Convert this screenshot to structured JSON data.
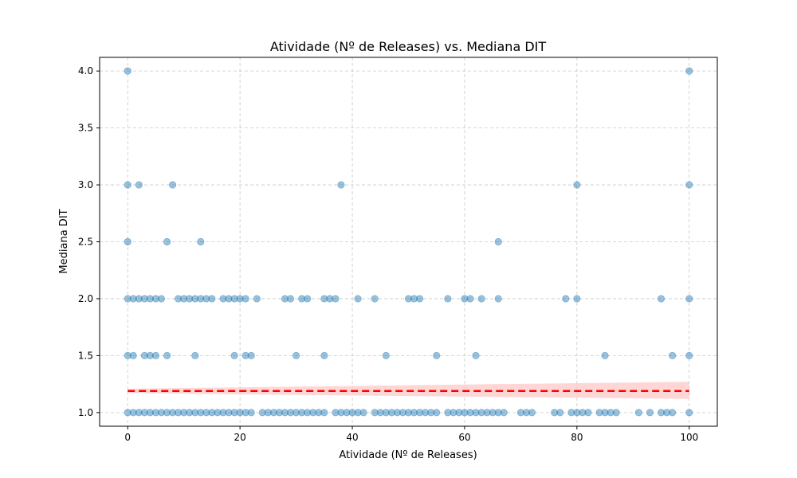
{
  "chart_data": {
    "type": "scatter",
    "title": "Atividade (Nº de Releases) vs. Mediana DIT",
    "xlabel": "Atividade (Nº de Releases)",
    "ylabel": "Mediana DIT",
    "xlim": [
      -5,
      105
    ],
    "ylim": [
      0.88,
      4.12
    ],
    "x_ticks": [
      0,
      20,
      40,
      60,
      80,
      100
    ],
    "y_ticks": [
      1.0,
      1.5,
      2.0,
      2.5,
      3.0,
      3.5,
      4.0
    ],
    "x_tick_labels": [
      "0",
      "20",
      "40",
      "60",
      "80",
      "100"
    ],
    "y_tick_labels": [
      "1.0",
      "1.5",
      "2.0",
      "2.5",
      "3.0",
      "3.5",
      "4.0"
    ],
    "grid": true,
    "series": [
      {
        "marker_color": "#1f77b4",
        "points": [
          [
            0,
            4.0
          ],
          [
            100,
            4.0
          ],
          [
            0,
            3.0
          ],
          [
            2,
            3.0
          ],
          [
            8,
            3.0
          ],
          [
            38,
            3.0
          ],
          [
            80,
            3.0
          ],
          [
            100,
            3.0
          ],
          [
            0,
            2.5
          ],
          [
            7,
            2.5
          ],
          [
            13,
            2.5
          ],
          [
            66,
            2.5
          ],
          [
            0,
            2.0
          ],
          [
            1,
            2.0
          ],
          [
            2,
            2.0
          ],
          [
            3,
            2.0
          ],
          [
            4,
            2.0
          ],
          [
            5,
            2.0
          ],
          [
            6,
            2.0
          ],
          [
            9,
            2.0
          ],
          [
            10,
            2.0
          ],
          [
            11,
            2.0
          ],
          [
            12,
            2.0
          ],
          [
            13,
            2.0
          ],
          [
            14,
            2.0
          ],
          [
            15,
            2.0
          ],
          [
            17,
            2.0
          ],
          [
            18,
            2.0
          ],
          [
            19,
            2.0
          ],
          [
            20,
            2.0
          ],
          [
            21,
            2.0
          ],
          [
            23,
            2.0
          ],
          [
            28,
            2.0
          ],
          [
            29,
            2.0
          ],
          [
            31,
            2.0
          ],
          [
            32,
            2.0
          ],
          [
            35,
            2.0
          ],
          [
            36,
            2.0
          ],
          [
            37,
            2.0
          ],
          [
            41,
            2.0
          ],
          [
            44,
            2.0
          ],
          [
            50,
            2.0
          ],
          [
            51,
            2.0
          ],
          [
            52,
            2.0
          ],
          [
            57,
            2.0
          ],
          [
            60,
            2.0
          ],
          [
            61,
            2.0
          ],
          [
            63,
            2.0
          ],
          [
            66,
            2.0
          ],
          [
            78,
            2.0
          ],
          [
            80,
            2.0
          ],
          [
            95,
            2.0
          ],
          [
            100,
            2.0
          ],
          [
            0,
            1.5
          ],
          [
            1,
            1.5
          ],
          [
            3,
            1.5
          ],
          [
            4,
            1.5
          ],
          [
            5,
            1.5
          ],
          [
            7,
            1.5
          ],
          [
            12,
            1.5
          ],
          [
            19,
            1.5
          ],
          [
            21,
            1.5
          ],
          [
            22,
            1.5
          ],
          [
            30,
            1.5
          ],
          [
            35,
            1.5
          ],
          [
            46,
            1.5
          ],
          [
            55,
            1.5
          ],
          [
            62,
            1.5
          ],
          [
            85,
            1.5
          ],
          [
            97,
            1.5
          ],
          [
            100,
            1.5
          ],
          [
            0,
            1.0
          ],
          [
            1,
            1.0
          ],
          [
            2,
            1.0
          ],
          [
            3,
            1.0
          ],
          [
            4,
            1.0
          ],
          [
            5,
            1.0
          ],
          [
            6,
            1.0
          ],
          [
            7,
            1.0
          ],
          [
            8,
            1.0
          ],
          [
            9,
            1.0
          ],
          [
            10,
            1.0
          ],
          [
            11,
            1.0
          ],
          [
            12,
            1.0
          ],
          [
            13,
            1.0
          ],
          [
            14,
            1.0
          ],
          [
            15,
            1.0
          ],
          [
            16,
            1.0
          ],
          [
            17,
            1.0
          ],
          [
            18,
            1.0
          ],
          [
            19,
            1.0
          ],
          [
            20,
            1.0
          ],
          [
            21,
            1.0
          ],
          [
            22,
            1.0
          ],
          [
            24,
            1.0
          ],
          [
            25,
            1.0
          ],
          [
            26,
            1.0
          ],
          [
            27,
            1.0
          ],
          [
            28,
            1.0
          ],
          [
            29,
            1.0
          ],
          [
            30,
            1.0
          ],
          [
            31,
            1.0
          ],
          [
            32,
            1.0
          ],
          [
            33,
            1.0
          ],
          [
            34,
            1.0
          ],
          [
            35,
            1.0
          ],
          [
            37,
            1.0
          ],
          [
            38,
            1.0
          ],
          [
            39,
            1.0
          ],
          [
            40,
            1.0
          ],
          [
            41,
            1.0
          ],
          [
            42,
            1.0
          ],
          [
            44,
            1.0
          ],
          [
            45,
            1.0
          ],
          [
            46,
            1.0
          ],
          [
            47,
            1.0
          ],
          [
            48,
            1.0
          ],
          [
            49,
            1.0
          ],
          [
            50,
            1.0
          ],
          [
            51,
            1.0
          ],
          [
            52,
            1.0
          ],
          [
            53,
            1.0
          ],
          [
            54,
            1.0
          ],
          [
            55,
            1.0
          ],
          [
            57,
            1.0
          ],
          [
            58,
            1.0
          ],
          [
            59,
            1.0
          ],
          [
            60,
            1.0
          ],
          [
            61,
            1.0
          ],
          [
            62,
            1.0
          ],
          [
            63,
            1.0
          ],
          [
            64,
            1.0
          ],
          [
            65,
            1.0
          ],
          [
            66,
            1.0
          ],
          [
            67,
            1.0
          ],
          [
            70,
            1.0
          ],
          [
            71,
            1.0
          ],
          [
            72,
            1.0
          ],
          [
            76,
            1.0
          ],
          [
            77,
            1.0
          ],
          [
            79,
            1.0
          ],
          [
            80,
            1.0
          ],
          [
            81,
            1.0
          ],
          [
            82,
            1.0
          ],
          [
            84,
            1.0
          ],
          [
            85,
            1.0
          ],
          [
            86,
            1.0
          ],
          [
            87,
            1.0
          ],
          [
            91,
            1.0
          ],
          [
            93,
            1.0
          ],
          [
            95,
            1.0
          ],
          [
            96,
            1.0
          ],
          [
            97,
            1.0
          ],
          [
            100,
            1.0
          ]
        ]
      }
    ],
    "trend_line": {
      "style": "dashed",
      "color": "#ff0000",
      "x": [
        0,
        100
      ],
      "y": [
        1.19,
        1.19
      ],
      "ci_band": {
        "color": "#ffcccc",
        "lower": [
          1.17,
          1.12
        ],
        "upper": [
          1.21,
          1.27
        ]
      }
    }
  }
}
